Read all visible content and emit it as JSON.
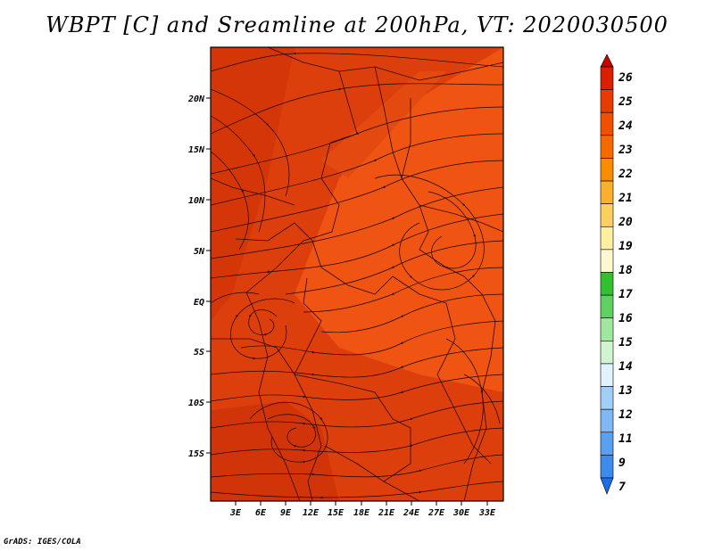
{
  "title": "WBPT [C] and Sreamline at 200hPa, VT: 2020030500",
  "credit": "GrADS: IGES/COLA",
  "map": {
    "variable": "WBPT [C]",
    "level": "200hPa",
    "valid_time": "2020030500",
    "lat_labels": [
      "20N",
      "15N",
      "10N",
      "5N",
      "EQ",
      "5S",
      "10S",
      "15S"
    ],
    "lon_labels": [
      "3E",
      "6E",
      "9E",
      "12E",
      "15E",
      "18E",
      "21E",
      "24E",
      "27E",
      "30E",
      "33E"
    ]
  },
  "colorbar": {
    "labels": [
      "26",
      "25",
      "24",
      "23",
      "22",
      "21",
      "20",
      "19",
      "18",
      "17",
      "16",
      "15",
      "14",
      "13",
      "12",
      "11",
      "9",
      "7"
    ],
    "colors": [
      "#c80000",
      "#dc1e00",
      "#e83c00",
      "#f05000",
      "#f56a00",
      "#fa8c00",
      "#fcb030",
      "#fdd060",
      "#fdf0a0",
      "#fff8d0",
      "#30c030",
      "#60d060",
      "#a0e8a0",
      "#d0f5d0",
      "#e0f4ff",
      "#a0d0fa",
      "#80b8f5",
      "#5aa0f0",
      "#3c8cf0",
      "#1e6ee6"
    ]
  },
  "colors": {
    "field_dark": "#d63a0a",
    "field_mid": "#e84810",
    "field_bright": "#f25a14",
    "streamline": "#1a0500"
  }
}
